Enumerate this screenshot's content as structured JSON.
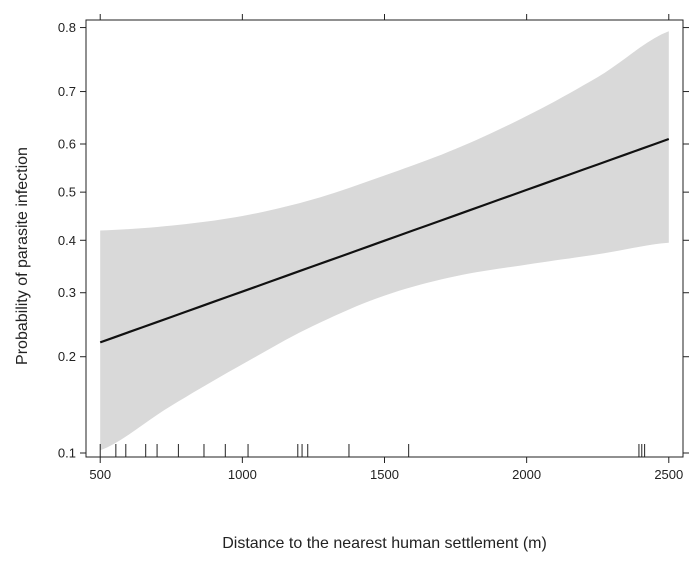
{
  "chart_data": {
    "type": "line",
    "title": "",
    "xlabel": "Distance to the nearest human settlement (m)",
    "ylabel": "Probability of parasite infection",
    "xlim": [
      450,
      2550
    ],
    "ylim": [
      0.097,
      0.81
    ],
    "yscale": "logit",
    "grid": false,
    "x_ticks": [
      500,
      1000,
      1500,
      2000,
      2500
    ],
    "x_tick_labels": [
      "500",
      "1000",
      "1500",
      "2000",
      "2500"
    ],
    "y_ticks": [
      0.1,
      0.2,
      0.3,
      0.4,
      0.5,
      0.6,
      0.7,
      0.8
    ],
    "y_tick_labels": [
      "0.1",
      "0.2",
      "0.3",
      "0.4",
      "0.5",
      "0.6",
      "0.7",
      "0.8"
    ],
    "series": [
      {
        "x": [
          500,
          2500
        ],
        "y": [
          0.22,
          0.61
        ],
        "color": "#111111"
      }
    ],
    "confidence_band": {
      "x": [
        500,
        750,
        1000,
        1250,
        1500,
        1750,
        2000,
        2250,
        2500
      ],
      "lower": [
        0.102,
        0.142,
        0.19,
        0.245,
        0.295,
        0.33,
        0.352,
        0.372,
        0.395
      ],
      "upper": [
        0.42,
        0.43,
        0.45,
        0.485,
        0.535,
        0.59,
        0.655,
        0.725,
        0.795
      ],
      "color": "#d9d9d9"
    },
    "rug": [
      500,
      555,
      590,
      660,
      700,
      775,
      865,
      940,
      1020,
      1195,
      1210,
      1230,
      1375,
      1585,
      2395,
      2405,
      2415
    ]
  }
}
